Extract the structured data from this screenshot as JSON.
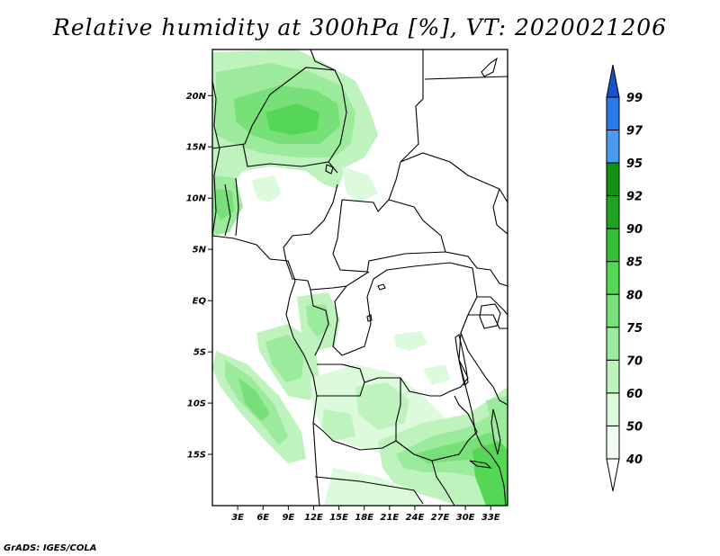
{
  "title": "Relative humidity at 300hPa [%], VT: 2020021206",
  "footer": "GrADS: IGES/COLA",
  "map": {
    "lon_range": [
      0,
      35
    ],
    "lat_range": [
      -20,
      24.5
    ],
    "lat_ticks": [
      "20N",
      "15N",
      "10N",
      "5N",
      "EQ",
      "5S",
      "10S",
      "15S"
    ],
    "lon_ticks": [
      "3E",
      "6E",
      "9E",
      "12E",
      "15E",
      "18E",
      "21E",
      "24E",
      "27E",
      "30E",
      "33E"
    ]
  },
  "colorbar": {
    "levels": [
      "99",
      "97",
      "95",
      "92",
      "90",
      "85",
      "80",
      "75",
      "70",
      "60",
      "50",
      "40"
    ],
    "colors": {
      "99": "#1e5fd6",
      "97": "#2b7ae6",
      "95": "#4a9bef",
      "92": "#149214",
      "90": "#1fa31f",
      "85": "#36c036",
      "80": "#55d655",
      "75": "#78e078",
      "70": "#9cea9c",
      "60": "#bef3be",
      "50": "#dcfadc",
      "40": "#f0fdf0"
    }
  }
}
